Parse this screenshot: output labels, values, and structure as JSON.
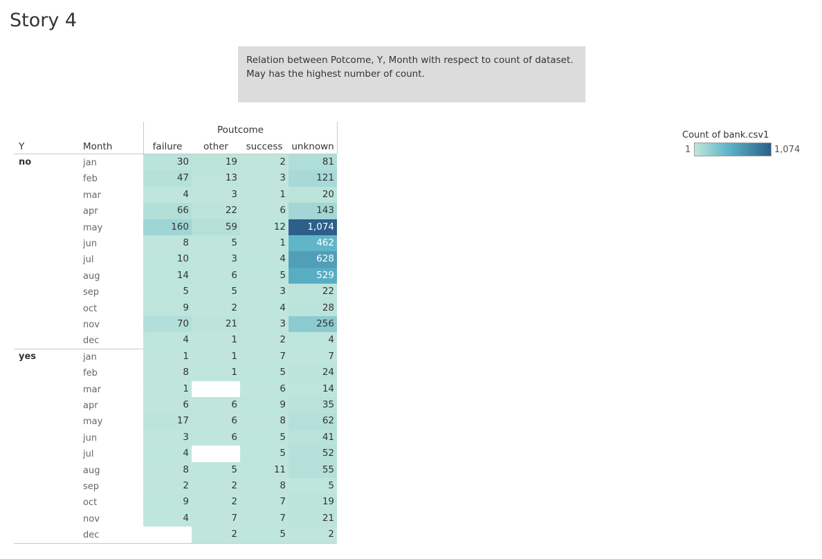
{
  "story_title": "Story 4",
  "caption": {
    "line1": "Relation between Potcome, Y, Month with respect to count of dataset.",
    "line2": "May has the highest number of count."
  },
  "headers": {
    "col_group": "Poutcome",
    "y": "Y",
    "month": "Month"
  },
  "legend": {
    "title": "Count of bank.csv1",
    "min_label": "1",
    "max_label": "1,074"
  },
  "colors": {
    "low": "#c0e6dc",
    "mid": "#5cb3c7",
    "high": "#2c5f8a",
    "caption_bg": "#dcdcdc"
  },
  "chart_data": {
    "type": "heatmap",
    "title": "",
    "row_dims": [
      "Y",
      "Month"
    ],
    "columns": [
      "failure",
      "other",
      "success",
      "unknown"
    ],
    "color_range": [
      1,
      1074
    ],
    "groups": [
      {
        "y": "no",
        "rows": [
          {
            "month": "jan",
            "values": [
              30,
              19,
              2,
              81
            ],
            "labels": [
              "30",
              "19",
              "2",
              "81"
            ]
          },
          {
            "month": "feb",
            "values": [
              47,
              13,
              3,
              121
            ],
            "labels": [
              "47",
              "13",
              "3",
              "121"
            ]
          },
          {
            "month": "mar",
            "values": [
              4,
              3,
              1,
              20
            ],
            "labels": [
              "4",
              "3",
              "1",
              "20"
            ]
          },
          {
            "month": "apr",
            "values": [
              66,
              22,
              6,
              143
            ],
            "labels": [
              "66",
              "22",
              "6",
              "143"
            ]
          },
          {
            "month": "may",
            "values": [
              160,
              59,
              12,
              1074
            ],
            "labels": [
              "160",
              "59",
              "12",
              "1,074"
            ]
          },
          {
            "month": "jun",
            "values": [
              8,
              5,
              1,
              462
            ],
            "labels": [
              "8",
              "5",
              "1",
              "462"
            ]
          },
          {
            "month": "jul",
            "values": [
              10,
              3,
              4,
              628
            ],
            "labels": [
              "10",
              "3",
              "4",
              "628"
            ]
          },
          {
            "month": "aug",
            "values": [
              14,
              6,
              5,
              529
            ],
            "labels": [
              "14",
              "6",
              "5",
              "529"
            ]
          },
          {
            "month": "sep",
            "values": [
              5,
              5,
              3,
              22
            ],
            "labels": [
              "5",
              "5",
              "3",
              "22"
            ]
          },
          {
            "month": "oct",
            "values": [
              9,
              2,
              4,
              28
            ],
            "labels": [
              "9",
              "2",
              "4",
              "28"
            ]
          },
          {
            "month": "nov",
            "values": [
              70,
              21,
              3,
              256
            ],
            "labels": [
              "70",
              "21",
              "3",
              "256"
            ]
          },
          {
            "month": "dec",
            "values": [
              4,
              1,
              2,
              4
            ],
            "labels": [
              "4",
              "1",
              "2",
              "4"
            ]
          }
        ]
      },
      {
        "y": "yes",
        "rows": [
          {
            "month": "jan",
            "values": [
              1,
              1,
              7,
              7
            ],
            "labels": [
              "1",
              "1",
              "7",
              "7"
            ]
          },
          {
            "month": "feb",
            "values": [
              8,
              1,
              5,
              24
            ],
            "labels": [
              "8",
              "1",
              "5",
              "24"
            ]
          },
          {
            "month": "mar",
            "values": [
              1,
              null,
              6,
              14
            ],
            "labels": [
              "1",
              "",
              "6",
              "14"
            ]
          },
          {
            "month": "apr",
            "values": [
              6,
              6,
              9,
              35
            ],
            "labels": [
              "6",
              "6",
              "9",
              "35"
            ]
          },
          {
            "month": "may",
            "values": [
              17,
              6,
              8,
              62
            ],
            "labels": [
              "17",
              "6",
              "8",
              "62"
            ]
          },
          {
            "month": "jun",
            "values": [
              3,
              6,
              5,
              41
            ],
            "labels": [
              "3",
              "6",
              "5",
              "41"
            ]
          },
          {
            "month": "jul",
            "values": [
              4,
              null,
              5,
              52
            ],
            "labels": [
              "4",
              "",
              "5",
              "52"
            ]
          },
          {
            "month": "aug",
            "values": [
              8,
              5,
              11,
              55
            ],
            "labels": [
              "8",
              "5",
              "11",
              "55"
            ]
          },
          {
            "month": "sep",
            "values": [
              2,
              2,
              8,
              5
            ],
            "labels": [
              "2",
              "2",
              "8",
              "5"
            ]
          },
          {
            "month": "oct",
            "values": [
              9,
              2,
              7,
              19
            ],
            "labels": [
              "9",
              "2",
              "7",
              "19"
            ]
          },
          {
            "month": "nov",
            "values": [
              4,
              7,
              7,
              21
            ],
            "labels": [
              "4",
              "7",
              "7",
              "21"
            ]
          },
          {
            "month": "dec",
            "values": [
              null,
              2,
              5,
              2
            ],
            "labels": [
              "",
              "2",
              "5",
              "2"
            ]
          }
        ]
      }
    ]
  }
}
